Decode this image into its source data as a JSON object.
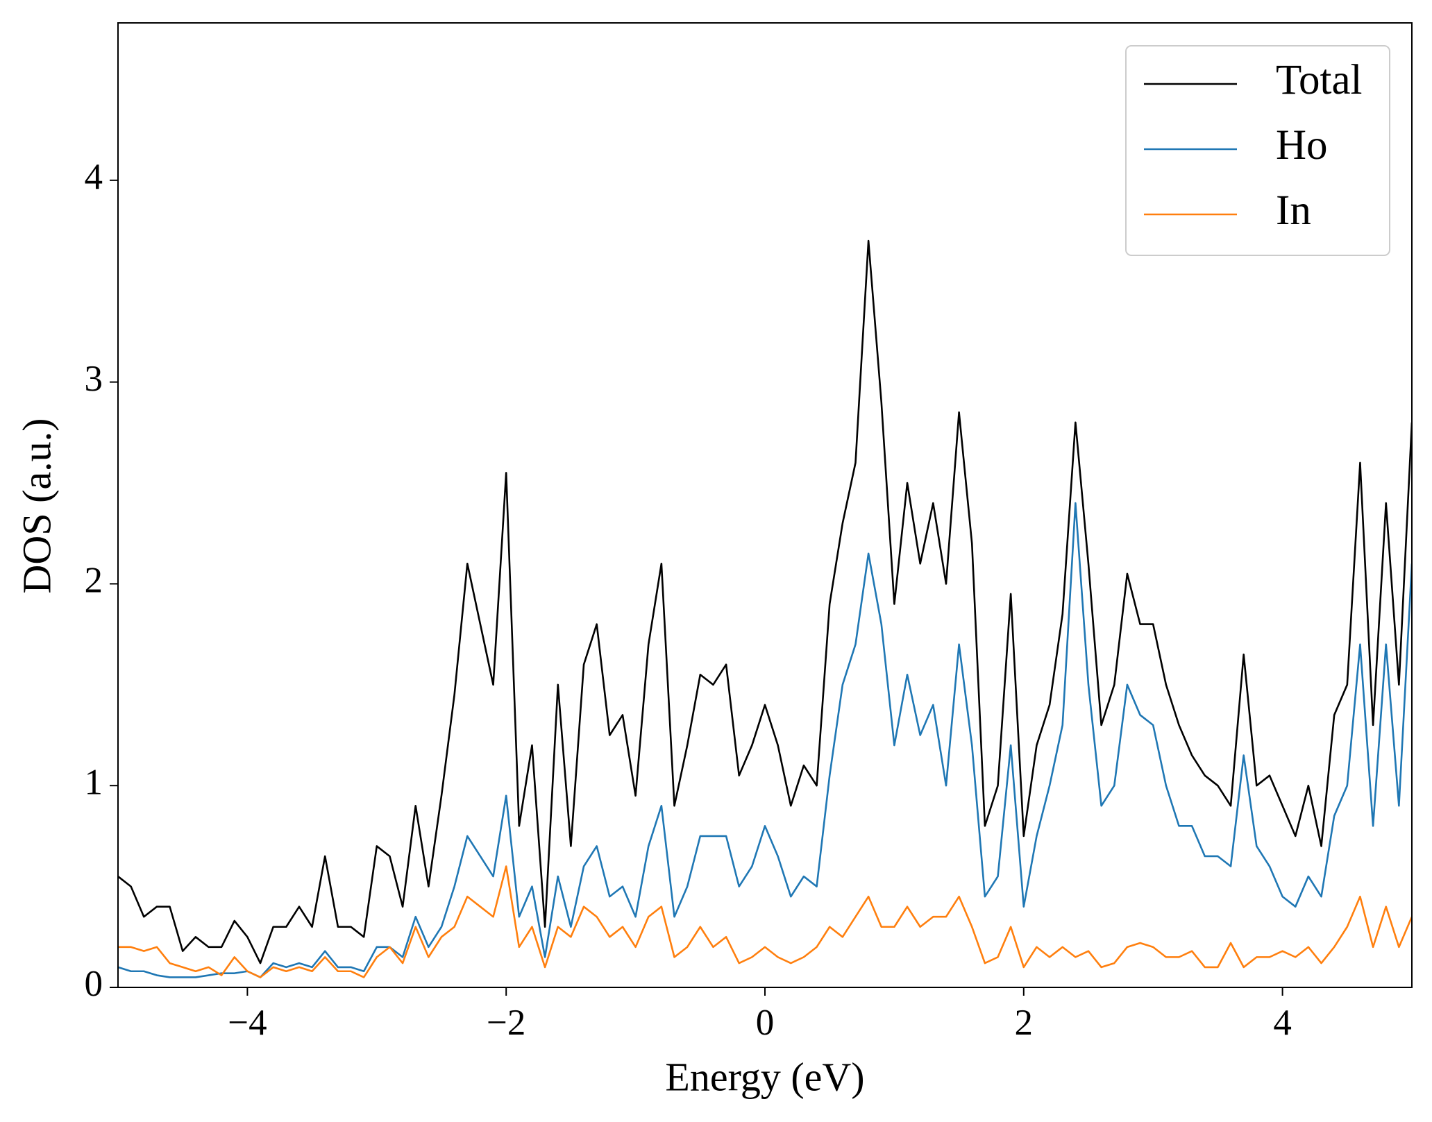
{
  "chart_data": {
    "type": "line",
    "x_label": "Energy (eV)",
    "y_label": "DOS (a.u.)",
    "x": [
      -5,
      -4.9,
      -4.8,
      -4.7,
      -4.6,
      -4.5,
      -4.4,
      -4.3,
      -4.2,
      -4.1,
      -4,
      -3.9,
      -3.8,
      -3.7,
      -3.6,
      -3.5,
      -3.4,
      -3.3,
      -3.2,
      -3.1,
      -3,
      -2.9,
      -2.8,
      -2.7,
      -2.6,
      -2.5,
      -2.4,
      -2.3,
      -2.2,
      -2.1,
      -2,
      -1.9,
      -1.8,
      -1.7,
      -1.6,
      -1.5,
      -1.4,
      -1.3,
      -1.2,
      -1.1,
      -1,
      -0.9,
      -0.8,
      -0.7,
      -0.6,
      -0.5,
      -0.4,
      -0.3,
      -0.2,
      -0.1,
      0,
      0.1,
      0.2,
      0.3,
      0.4,
      0.5,
      0.6,
      0.7,
      0.8,
      0.9,
      1,
      1.1,
      1.2,
      1.3,
      1.4,
      1.5,
      1.6,
      1.7,
      1.8,
      1.9,
      2,
      2.1,
      2.2,
      2.3,
      2.4,
      2.5,
      2.6,
      2.7,
      2.8,
      2.9,
      3,
      3.1,
      3.2,
      3.3,
      3.4,
      3.5,
      3.6,
      3.7,
      3.8,
      3.9,
      4,
      4.1,
      4.2,
      4.3,
      4.4,
      4.5,
      4.6,
      4.7,
      4.8,
      4.9,
      5
    ],
    "series": [
      {
        "name": "Total",
        "color": "#000000",
        "values": [
          0.55,
          0.5,
          0.35,
          0.4,
          0.4,
          0.18,
          0.25,
          0.2,
          0.2,
          0.33,
          0.25,
          0.12,
          0.3,
          0.3,
          0.4,
          0.3,
          0.65,
          0.3,
          0.3,
          0.25,
          0.7,
          0.65,
          0.4,
          0.9,
          0.5,
          0.95,
          1.45,
          2.1,
          1.8,
          1.5,
          2.55,
          0.8,
          1.2,
          0.3,
          1.5,
          0.7,
          1.6,
          1.8,
          1.25,
          1.35,
          0.95,
          1.7,
          2.1,
          0.9,
          1.2,
          1.55,
          1.5,
          1.6,
          1.05,
          1.2,
          1.4,
          1.2,
          0.9,
          1.1,
          1.0,
          1.9,
          2.3,
          2.6,
          3.7,
          2.9,
          1.9,
          2.5,
          2.1,
          2.4,
          2.0,
          2.85,
          2.2,
          0.8,
          1.0,
          1.95,
          0.75,
          1.2,
          1.4,
          1.85,
          2.8,
          2.1,
          1.3,
          1.5,
          2.05,
          1.8,
          1.8,
          1.5,
          1.3,
          1.15,
          1.05,
          1.0,
          0.9,
          1.65,
          1.0,
          1.05,
          0.9,
          0.75,
          1.0,
          0.7,
          1.35,
          1.5,
          2.6,
          1.3,
          2.4,
          1.5,
          2.8
        ]
      },
      {
        "name": "Ho",
        "color": "#1f77b4",
        "values": [
          0.1,
          0.08,
          0.08,
          0.06,
          0.05,
          0.05,
          0.05,
          0.06,
          0.07,
          0.07,
          0.08,
          0.05,
          0.12,
          0.1,
          0.12,
          0.1,
          0.18,
          0.1,
          0.1,
          0.08,
          0.2,
          0.2,
          0.15,
          0.35,
          0.2,
          0.3,
          0.5,
          0.75,
          0.65,
          0.55,
          0.95,
          0.35,
          0.5,
          0.15,
          0.55,
          0.3,
          0.6,
          0.7,
          0.45,
          0.5,
          0.35,
          0.7,
          0.9,
          0.35,
          0.5,
          0.75,
          0.75,
          0.75,
          0.5,
          0.6,
          0.8,
          0.65,
          0.45,
          0.55,
          0.5,
          1.05,
          1.5,
          1.7,
          2.15,
          1.8,
          1.2,
          1.55,
          1.25,
          1.4,
          1.0,
          1.7,
          1.2,
          0.45,
          0.55,
          1.2,
          0.4,
          0.75,
          1.0,
          1.3,
          2.4,
          1.5,
          0.9,
          1.0,
          1.5,
          1.35,
          1.3,
          1.0,
          0.8,
          0.8,
          0.65,
          0.65,
          0.6,
          1.15,
          0.7,
          0.6,
          0.45,
          0.4,
          0.55,
          0.45,
          0.85,
          1.0,
          1.7,
          0.8,
          1.7,
          0.9,
          2.1
        ]
      },
      {
        "name": "In",
        "color": "#ff7f0e",
        "values": [
          0.2,
          0.2,
          0.18,
          0.2,
          0.12,
          0.1,
          0.08,
          0.1,
          0.06,
          0.15,
          0.08,
          0.05,
          0.1,
          0.08,
          0.1,
          0.08,
          0.15,
          0.08,
          0.08,
          0.05,
          0.15,
          0.2,
          0.12,
          0.3,
          0.15,
          0.25,
          0.3,
          0.45,
          0.4,
          0.35,
          0.6,
          0.2,
          0.3,
          0.1,
          0.3,
          0.25,
          0.4,
          0.35,
          0.25,
          0.3,
          0.2,
          0.35,
          0.4,
          0.15,
          0.2,
          0.3,
          0.2,
          0.25,
          0.12,
          0.15,
          0.2,
          0.15,
          0.12,
          0.15,
          0.2,
          0.3,
          0.25,
          0.35,
          0.45,
          0.3,
          0.3,
          0.4,
          0.3,
          0.35,
          0.35,
          0.45,
          0.3,
          0.12,
          0.15,
          0.3,
          0.1,
          0.2,
          0.15,
          0.2,
          0.15,
          0.18,
          0.1,
          0.12,
          0.2,
          0.22,
          0.2,
          0.15,
          0.15,
          0.18,
          0.1,
          0.1,
          0.22,
          0.1,
          0.15,
          0.15,
          0.18,
          0.15,
          0.2,
          0.12,
          0.2,
          0.3,
          0.45,
          0.2,
          0.4,
          0.2,
          0.35
        ]
      }
    ],
    "xlim": [
      -5,
      5
    ],
    "ylim": [
      0,
      4.78
    ],
    "xticks": [
      {
        "value": -4,
        "label": "−4"
      },
      {
        "value": -2,
        "label": "−2"
      },
      0,
      2,
      4
    ],
    "yticks": [
      0,
      1,
      2,
      3,
      4
    ],
    "legend": "upper right",
    "grid": false
  }
}
